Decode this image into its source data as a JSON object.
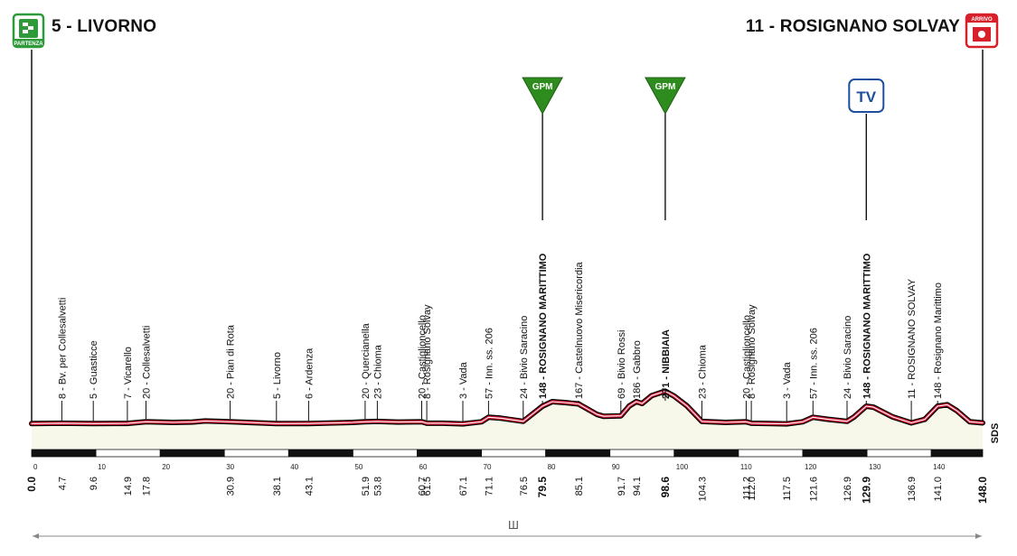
{
  "header": {
    "start_label": "5 - LIVORNO",
    "finish_label": "11 - ROSIGNANO SOLVAY",
    "start_badge_text": "PARTENZA",
    "finish_badge_text": "ARRIVO"
  },
  "markers": {
    "gpm_label": "GPM",
    "tv_label": "TV"
  },
  "footer": {
    "distance_glyph": "Ш",
    "sds_text": "SDS"
  },
  "colors": {
    "profile_line": "#c8102e",
    "ground_fill": "#f7f7ea",
    "gpm_green": "#2e8b1e",
    "finish_red": "#d8202a",
    "start_green": "#2e9a3a",
    "tv_blue": "#1f4e9c"
  },
  "chart_data": {
    "type": "area",
    "x_unit": "km",
    "y_unit": "m",
    "xlim": [
      0,
      148
    ],
    "ylim": [
      0,
      400
    ],
    "grid": false,
    "axis_ticks": [
      "0",
      "10",
      "20",
      "30",
      "40",
      "50",
      "60",
      "70",
      "80",
      "90",
      "100",
      "110",
      "120",
      "130",
      "140"
    ],
    "profile": [
      [
        0,
        5
      ],
      [
        4.7,
        8
      ],
      [
        9.6,
        5
      ],
      [
        14.9,
        7
      ],
      [
        17.8,
        20
      ],
      [
        22,
        15
      ],
      [
        25,
        18
      ],
      [
        27,
        27
      ],
      [
        30.9,
        20
      ],
      [
        34,
        14
      ],
      [
        38.1,
        5
      ],
      [
        43.1,
        6
      ],
      [
        48,
        12
      ],
      [
        50,
        15
      ],
      [
        51.9,
        20
      ],
      [
        53.8,
        23
      ],
      [
        57,
        18
      ],
      [
        60.7,
        20
      ],
      [
        61.5,
        8
      ],
      [
        64,
        8
      ],
      [
        67.1,
        3
      ],
      [
        70,
        20
      ],
      [
        71.1,
        57
      ],
      [
        73,
        50
      ],
      [
        76.5,
        24
      ],
      [
        79.5,
        148
      ],
      [
        81,
        185
      ],
      [
        83,
        178
      ],
      [
        85.1,
        167
      ],
      [
        88,
        80
      ],
      [
        89,
        65
      ],
      [
        91.7,
        69
      ],
      [
        93,
        150
      ],
      [
        94.1,
        186
      ],
      [
        95,
        170
      ],
      [
        96.5,
        235
      ],
      [
        98.6,
        271
      ],
      [
        100,
        230
      ],
      [
        102,
        150
      ],
      [
        104.3,
        23
      ],
      [
        108,
        15
      ],
      [
        111.2,
        20
      ],
      [
        112,
        8
      ],
      [
        115,
        5
      ],
      [
        117.5,
        3
      ],
      [
        120,
        20
      ],
      [
        121.6,
        57
      ],
      [
        124,
        40
      ],
      [
        126.9,
        24
      ],
      [
        128,
        60
      ],
      [
        129.9,
        148
      ],
      [
        131,
        140
      ],
      [
        134,
        60
      ],
      [
        136.9,
        11
      ],
      [
        139,
        40
      ],
      [
        141,
        148
      ],
      [
        142.5,
        160
      ],
      [
        144,
        110
      ],
      [
        146,
        20
      ],
      [
        148,
        11
      ]
    ],
    "points": [
      {
        "km": "0.0",
        "name": "",
        "bold": true,
        "x": 0
      },
      {
        "km": "4.7",
        "name": "8 - Bv. per Collesalvetti",
        "bold": false,
        "x": 4.7
      },
      {
        "km": "9.6",
        "name": "5 - Guasticce",
        "bold": false,
        "x": 9.6
      },
      {
        "km": "14.9",
        "name": "7 - Vicarello",
        "bold": false,
        "x": 14.9
      },
      {
        "km": "17.8",
        "name": "20 - Collesalvetti",
        "bold": false,
        "x": 17.8
      },
      {
        "km": "30.9",
        "name": "20 - Pian di Rota",
        "bold": false,
        "x": 30.9
      },
      {
        "km": "38.1",
        "name": "5 - Livorno",
        "bold": false,
        "x": 38.1
      },
      {
        "km": "43.1",
        "name": "6 - Ardenza",
        "bold": false,
        "x": 43.1
      },
      {
        "km": "51.9",
        "name": "20 - Quercianella",
        "bold": false,
        "x": 51.9
      },
      {
        "km": "53.8",
        "name": "23 - Chioma",
        "bold": false,
        "x": 53.8
      },
      {
        "km": "60.7",
        "name": "20 - Castiglioncello",
        "bold": false,
        "x": 60.7
      },
      {
        "km": "61.5",
        "name": "8 - Rosignano Solvay",
        "bold": false,
        "x": 61.5
      },
      {
        "km": "67.1",
        "name": "3 - Vada",
        "bold": false,
        "x": 67.1
      },
      {
        "km": "71.1",
        "name": "57 - Inn. ss. 206",
        "bold": false,
        "x": 71.1
      },
      {
        "km": "76.5",
        "name": "24 - Bivio Saracino",
        "bold": false,
        "x": 76.5
      },
      {
        "km": "79.5",
        "name": "148 - ROSIGNANO MARITTIMO",
        "bold": true,
        "x": 79.5
      },
      {
        "km": "85.1",
        "name": "167 - Castelnuovo Misericordia",
        "bold": false,
        "x": 85.1
      },
      {
        "km": "91.7",
        "name": "69 - Bivio Rossi",
        "bold": false,
        "x": 91.7
      },
      {
        "km": "94.1",
        "name": "186 - Gabbro",
        "bold": false,
        "x": 94.1
      },
      {
        "km": "98.6",
        "name": "271 - NIBBIAIA",
        "bold": true,
        "x": 98.6
      },
      {
        "km": "104.3",
        "name": "23 - Chioma",
        "bold": false,
        "x": 104.3
      },
      {
        "km": "111.2",
        "name": "20 - Castiglioncello",
        "bold": false,
        "x": 111.2
      },
      {
        "km": "112.0",
        "name": "8 - Rosignano Solvay",
        "bold": false,
        "x": 112.0
      },
      {
        "km": "117.5",
        "name": "3 - Vada",
        "bold": false,
        "x": 117.5
      },
      {
        "km": "121.6",
        "name": "57 - Inn. ss. 206",
        "bold": false,
        "x": 121.6
      },
      {
        "km": "126.9",
        "name": "24 - Bivio Saracino",
        "bold": false,
        "x": 126.9
      },
      {
        "km": "129.9",
        "name": "148 - ROSIGNANO MARITTIMO",
        "bold": true,
        "x": 129.9
      },
      {
        "km": "136.9",
        "name": "11 - ROSIGNANO SOLVAY",
        "bold": false,
        "x": 136.9
      },
      {
        "km": "141.0",
        "name": "148 - Rosignano Marittimo",
        "bold": false,
        "x": 141.0
      },
      {
        "km": "148.0",
        "name": "",
        "bold": true,
        "x": 148
      }
    ],
    "gpm_km": [
      79.5,
      98.6
    ],
    "tv_km": 129.9
  }
}
